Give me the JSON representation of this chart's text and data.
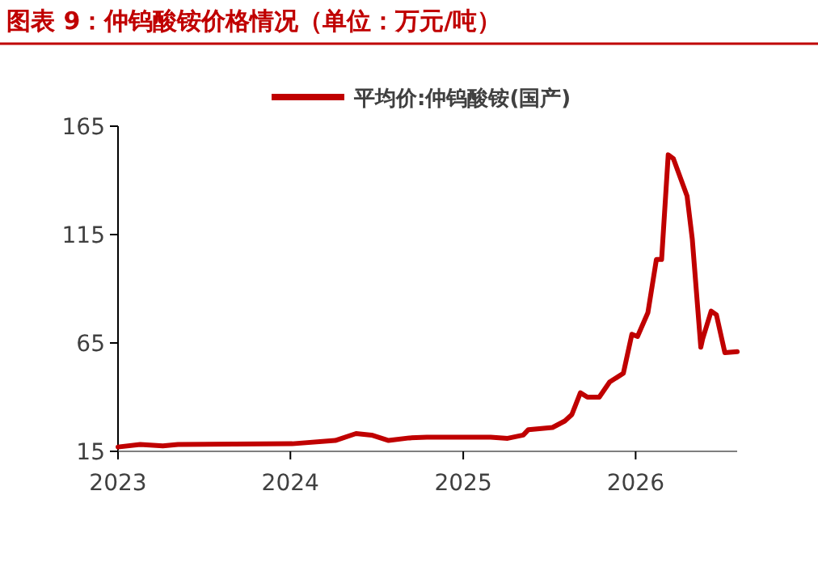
{
  "chart_data": {
    "type": "line",
    "title": "图表 9：仲钨酸铵价格情况（单位：万元/吨）",
    "x": [
      "2023-01-01",
      "2023-02-17",
      "2023-04-06",
      "2023-05-08",
      "2024-01-05",
      "2024-04-05",
      "2024-05-19",
      "2024-06-21",
      "2024-07-27",
      "2024-09-09",
      "2024-10-16",
      "2025-02-28",
      "2025-04-05",
      "2025-05-08",
      "2025-05-19",
      "2025-07-09",
      "2025-08-04",
      "2025-08-19",
      "2025-09-06",
      "2025-09-21",
      "2025-10-16",
      "2025-11-07",
      "2025-12-06",
      "2025-12-24",
      "2026-01-05",
      "2026-01-27",
      "2026-02-14",
      "2026-02-25",
      "2026-03-11",
      "2026-03-22",
      "2026-04-20",
      "2026-05-01",
      "2026-05-19",
      "2026-05-23",
      "2026-06-10",
      "2026-06-21",
      "2026-07-09",
      "2026-08-04"
    ],
    "series": [
      {
        "name": "平均价:仲钨酸铵(国产)",
        "color": "#c00000",
        "values": [
          17,
          18.2,
          17.5,
          18.2,
          18.5,
          20,
          23.2,
          22.5,
          20,
          21.2,
          21.5,
          21.5,
          21,
          22.5,
          25,
          26,
          29,
          32,
          42,
          40,
          40,
          47,
          51,
          69,
          68,
          79,
          103.5,
          103.5,
          151.8,
          150,
          132.7,
          112.8,
          63,
          66.9,
          79.7,
          78,
          60.5,
          61
        ]
      }
    ],
    "xlim": [
      "2023-01-01",
      "2026-08-04"
    ],
    "xticks": [
      "2023",
      "2024",
      "2025",
      "2026"
    ],
    "ylim": [
      15,
      165
    ],
    "yticks": [
      15,
      65,
      115,
      165
    ],
    "legend": "top"
  }
}
